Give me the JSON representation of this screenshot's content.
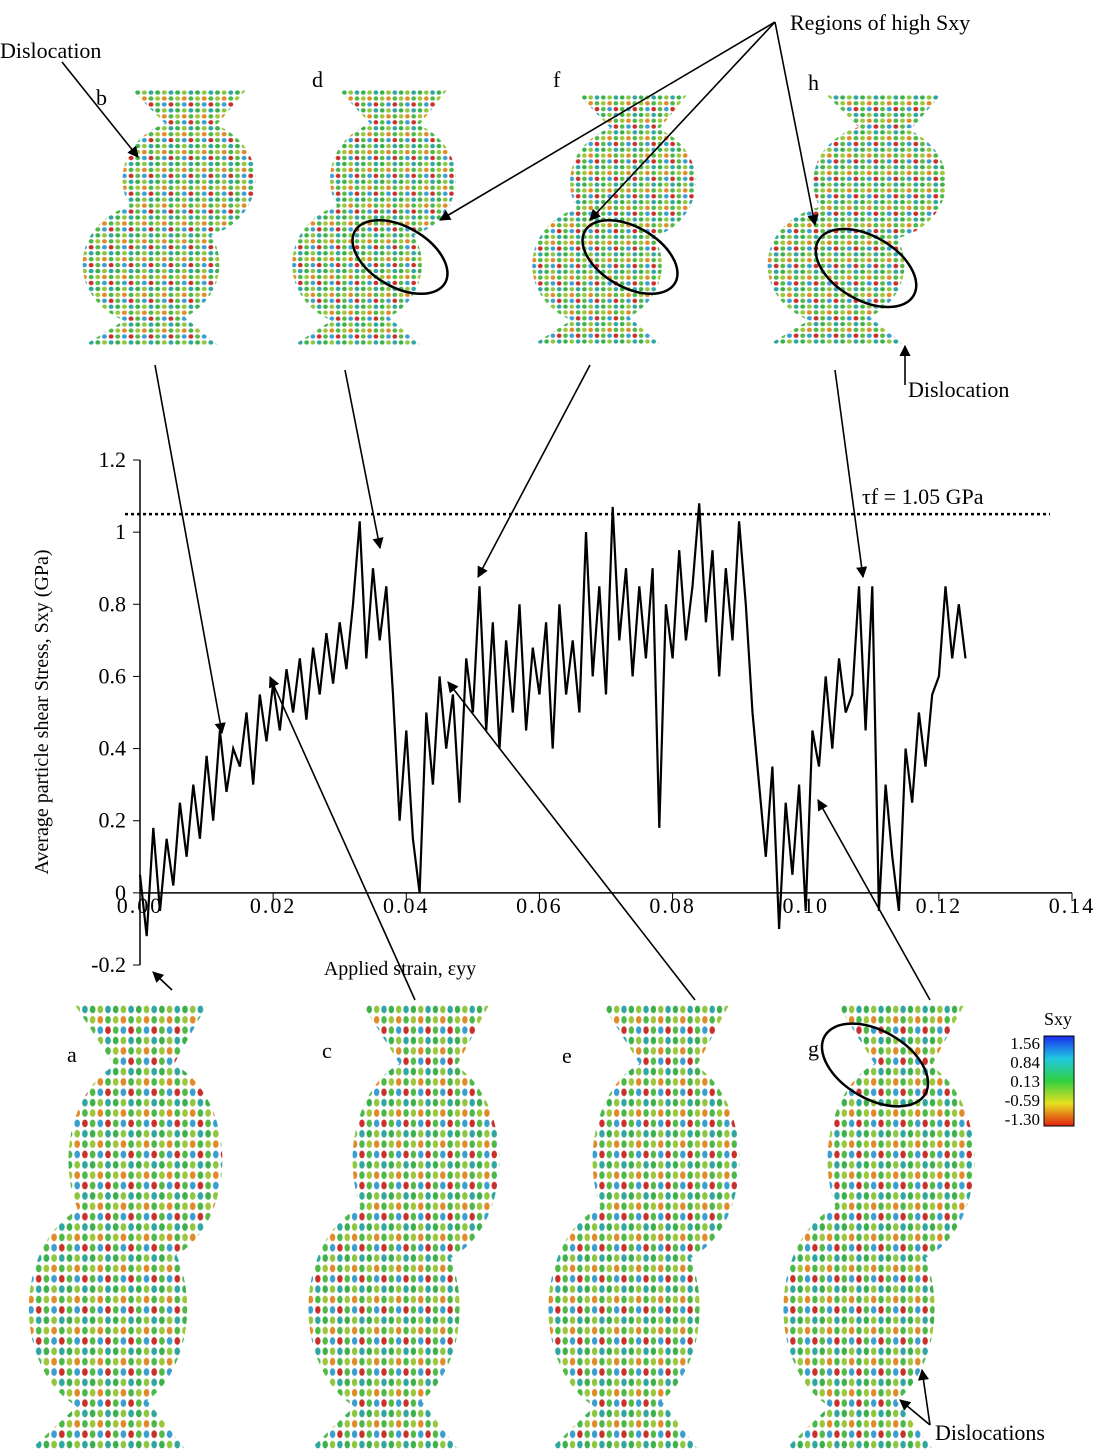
{
  "chart_data": {
    "type": "line",
    "x_label": "Applied strain, εyy",
    "y_label": "Average particle shear Stress, Sxy (GPa)",
    "x": [
      0,
      0.001,
      0.002,
      0.003,
      0.004,
      0.005,
      0.006,
      0.007,
      0.008,
      0.009,
      0.01,
      0.011,
      0.012,
      0.013,
      0.014,
      0.015,
      0.016,
      0.017,
      0.018,
      0.019,
      0.02,
      0.021,
      0.022,
      0.023,
      0.024,
      0.025,
      0.026,
      0.027,
      0.028,
      0.029,
      0.03,
      0.031,
      0.032,
      0.033,
      0.034,
      0.035,
      0.036,
      0.037,
      0.038,
      0.039,
      0.04,
      0.041,
      0.042,
      0.043,
      0.044,
      0.045,
      0.046,
      0.047,
      0.048,
      0.049,
      0.05,
      0.051,
      0.052,
      0.053,
      0.054,
      0.055,
      0.056,
      0.057,
      0.058,
      0.059,
      0.06,
      0.061,
      0.062,
      0.063,
      0.064,
      0.065,
      0.066,
      0.067,
      0.068,
      0.069,
      0.07,
      0.071,
      0.072,
      0.073,
      0.074,
      0.075,
      0.076,
      0.077,
      0.078,
      0.079,
      0.08,
      0.081,
      0.082,
      0.083,
      0.084,
      0.085,
      0.086,
      0.087,
      0.088,
      0.089,
      0.09,
      0.091,
      0.092,
      0.093,
      0.094,
      0.095,
      0.096,
      0.097,
      0.098,
      0.099,
      0.1,
      0.101,
      0.102,
      0.103,
      0.104,
      0.105,
      0.106,
      0.107,
      0.108,
      0.109,
      0.11,
      0.111,
      0.112,
      0.113,
      0.114,
      0.115,
      0.116,
      0.117,
      0.118,
      0.119,
      0.12,
      0.121,
      0.122,
      0.123,
      0.124
    ],
    "values": [
      0.05,
      -0.12,
      0.18,
      -0.05,
      0.15,
      0.02,
      0.25,
      0.1,
      0.3,
      0.15,
      0.38,
      0.2,
      0.45,
      0.28,
      0.4,
      0.35,
      0.5,
      0.3,
      0.55,
      0.42,
      0.58,
      0.45,
      0.62,
      0.5,
      0.65,
      0.48,
      0.68,
      0.55,
      0.72,
      0.58,
      0.75,
      0.62,
      0.8,
      1.03,
      0.65,
      0.9,
      0.7,
      0.85,
      0.55,
      0.2,
      0.45,
      0.15,
      0.0,
      0.5,
      0.3,
      0.6,
      0.4,
      0.55,
      0.25,
      0.65,
      0.5,
      0.85,
      0.45,
      0.75,
      0.4,
      0.7,
      0.5,
      0.8,
      0.45,
      0.68,
      0.55,
      0.75,
      0.4,
      0.8,
      0.55,
      0.7,
      0.5,
      1.0,
      0.6,
      0.85,
      0.55,
      1.07,
      0.7,
      0.9,
      0.6,
      0.85,
      0.65,
      0.9,
      0.18,
      0.8,
      0.65,
      0.95,
      0.7,
      0.85,
      1.08,
      0.75,
      0.95,
      0.6,
      0.9,
      0.7,
      1.03,
      0.8,
      0.5,
      0.3,
      0.1,
      0.35,
      -0.1,
      0.25,
      0.05,
      0.3,
      -0.05,
      0.45,
      0.35,
      0.6,
      0.4,
      0.65,
      0.5,
      0.55,
      0.85,
      0.45,
      0.85,
      -0.05,
      0.3,
      0.1,
      -0.05,
      0.4,
      0.25,
      0.5,
      0.35,
      0.55,
      0.6,
      0.85,
      0.65,
      0.8,
      0.65
    ],
    "color": "#000000",
    "xlim": [
      0,
      0.14
    ],
    "xticks": [
      {
        "value": 0,
        "label": "0.00"
      },
      0.02,
      0.04,
      0.06,
      0.08,
      {
        "value": 0.1,
        "label": "0.10"
      },
      0.12,
      0.14
    ],
    "ylim": [
      -0.2,
      1.2
    ],
    "yticks": [
      -0.2,
      0,
      0.2,
      0.4,
      0.6,
      0.8,
      1,
      1.2
    ],
    "reference_line": {
      "value": 1.05,
      "label": "τf = 1.05 GPa"
    },
    "panel_labels": [
      "a",
      "b",
      "c",
      "d",
      "e",
      "f",
      "g",
      "h"
    ],
    "annotations": [
      "Dislocation",
      "Regions of high Sxy",
      "Dislocation",
      "Dislocations"
    ],
    "colorbar": {
      "title": "Sxy",
      "ticks": [
        1.56,
        0.84,
        0.13,
        -0.59,
        {
          "value": -1.3,
          "label": "-1.30"
        }
      ]
    }
  }
}
